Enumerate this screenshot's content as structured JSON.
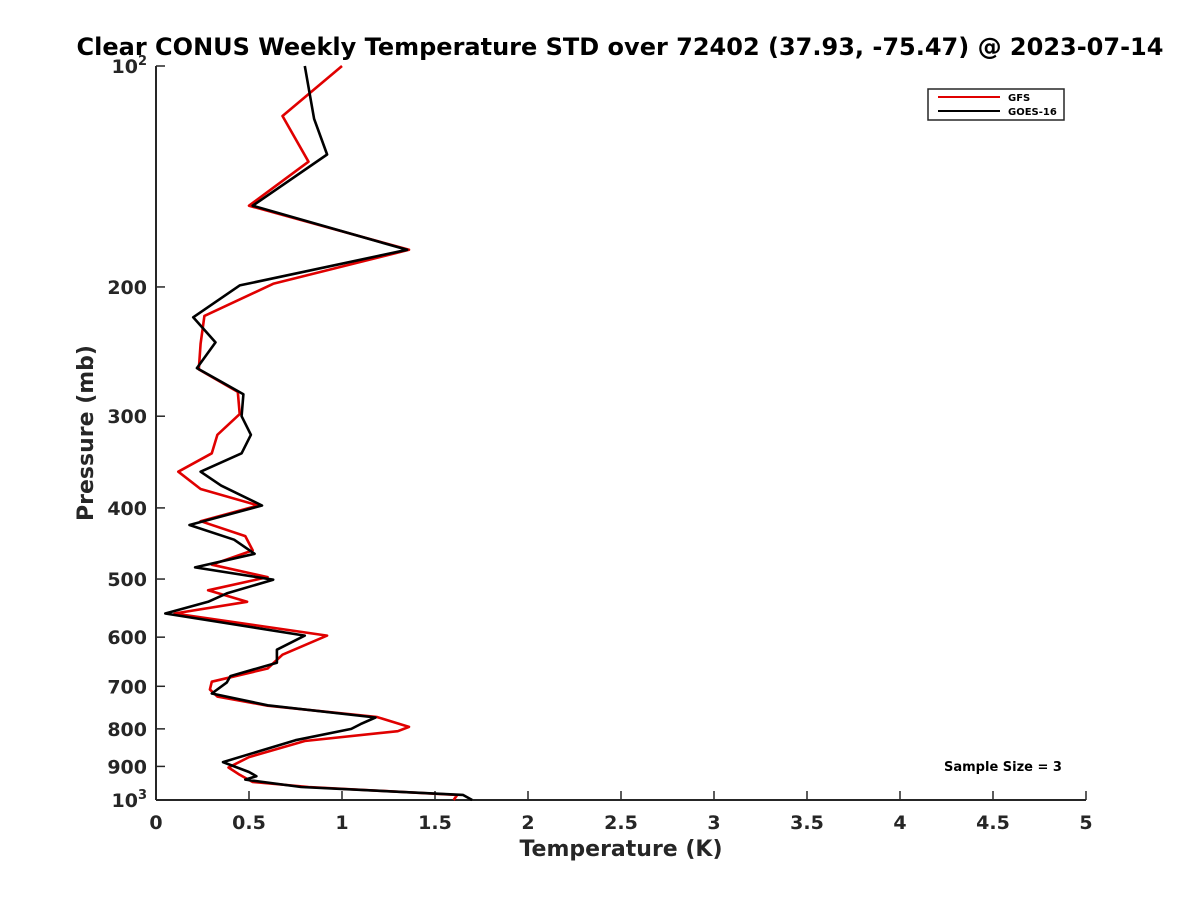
{
  "chart_data": {
    "type": "line",
    "title": "Clear CONUS Weekly Temperature STD over 72402 (37.93, -75.47) @ 2023-07-14",
    "xlabel": "Temperature (K)",
    "ylabel": "Pressure (mb)",
    "xlim": [
      0,
      5
    ],
    "ylim": [
      100,
      1000
    ],
    "y_scale": "log",
    "y_reversed": true,
    "grid": false,
    "legend_position": "top-right",
    "x_ticks": [
      "0",
      "0.5",
      "1",
      "1.5",
      "2",
      "2.5",
      "3",
      "3.5",
      "4",
      "4.5",
      "5"
    ],
    "y_ticks": [
      {
        "value": 100,
        "base": "10",
        "exp": "2"
      },
      {
        "value": 200,
        "base": "200",
        "exp": ""
      },
      {
        "value": 300,
        "base": "300",
        "exp": ""
      },
      {
        "value": 400,
        "base": "400",
        "exp": ""
      },
      {
        "value": 500,
        "base": "500",
        "exp": ""
      },
      {
        "value": 600,
        "base": "600",
        "exp": ""
      },
      {
        "value": 700,
        "base": "700",
        "exp": ""
      },
      {
        "value": 800,
        "base": "800",
        "exp": ""
      },
      {
        "value": 900,
        "base": "900",
        "exp": ""
      },
      {
        "value": 1000,
        "base": "10",
        "exp": "3"
      }
    ],
    "annotation": "Sample Size = 3",
    "series": [
      {
        "name": "GFS",
        "color": "#e00000",
        "points": [
          [
            1.0,
            100
          ],
          [
            0.68,
            117
          ],
          [
            0.82,
            135
          ],
          [
            0.5,
            155
          ],
          [
            1.36,
            178
          ],
          [
            0.63,
            198
          ],
          [
            0.26,
            219
          ],
          [
            0.24,
            239
          ],
          [
            0.23,
            259
          ],
          [
            0.44,
            278
          ],
          [
            0.45,
            298
          ],
          [
            0.33,
            318
          ],
          [
            0.3,
            337
          ],
          [
            0.12,
            357
          ],
          [
            0.24,
            377
          ],
          [
            0.55,
            397
          ],
          [
            0.24,
            417
          ],
          [
            0.48,
            437
          ],
          [
            0.52,
            457
          ],
          [
            0.3,
            478
          ],
          [
            0.6,
            497
          ],
          [
            0.28,
            518
          ],
          [
            0.49,
            537
          ],
          [
            0.1,
            557
          ],
          [
            0.92,
            597
          ],
          [
            0.68,
            634
          ],
          [
            0.6,
            662
          ],
          [
            0.3,
            690
          ],
          [
            0.29,
            707
          ],
          [
            0.33,
            723
          ],
          [
            0.6,
            744
          ],
          [
            1.19,
            771
          ],
          [
            1.36,
            795
          ],
          [
            1.3,
            806
          ],
          [
            0.8,
            831
          ],
          [
            0.5,
            874
          ],
          [
            0.39,
            903
          ],
          [
            0.45,
            924
          ],
          [
            0.52,
            945
          ],
          [
            0.82,
            960
          ],
          [
            1.62,
            984
          ],
          [
            1.6,
            1000
          ]
        ]
      },
      {
        "name": "GOES-16",
        "color": "#000000",
        "points": [
          [
            0.8,
            100
          ],
          [
            0.85,
            118
          ],
          [
            0.92,
            132
          ],
          [
            0.52,
            155
          ],
          [
            1.35,
            178
          ],
          [
            0.45,
            199
          ],
          [
            0.2,
            220
          ],
          [
            0.32,
            238
          ],
          [
            0.22,
            258
          ],
          [
            0.47,
            280
          ],
          [
            0.46,
            300
          ],
          [
            0.51,
            318
          ],
          [
            0.46,
            337
          ],
          [
            0.24,
            357
          ],
          [
            0.35,
            373
          ],
          [
            0.57,
            397
          ],
          [
            0.18,
            422
          ],
          [
            0.42,
            442
          ],
          [
            0.53,
            462
          ],
          [
            0.21,
            482
          ],
          [
            0.63,
            501
          ],
          [
            0.38,
            523
          ],
          [
            0.28,
            537
          ],
          [
            0.05,
            557
          ],
          [
            0.8,
            597
          ],
          [
            0.65,
            624
          ],
          [
            0.65,
            650
          ],
          [
            0.4,
            678
          ],
          [
            0.38,
            692
          ],
          [
            0.3,
            716
          ],
          [
            0.6,
            743
          ],
          [
            1.18,
            772
          ],
          [
            1.1,
            788
          ],
          [
            1.05,
            800
          ],
          [
            0.75,
            829
          ],
          [
            0.36,
            888
          ],
          [
            0.5,
            916
          ],
          [
            0.54,
            928
          ],
          [
            0.48,
            938
          ],
          [
            0.78,
            960
          ],
          [
            1.65,
            984
          ],
          [
            1.7,
            1000
          ]
        ]
      }
    ]
  }
}
